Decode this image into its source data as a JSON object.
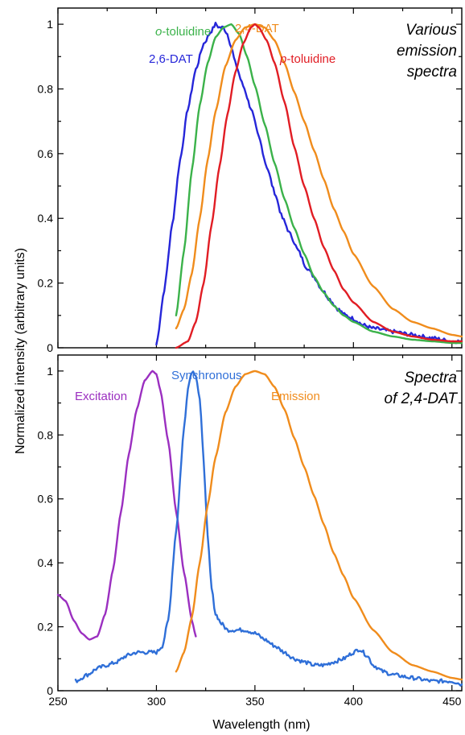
{
  "figure": {
    "ylabel": "Normalized intensity (arbitrary units)",
    "xlabel": "Wavelength (nm)"
  },
  "chart_data": [
    {
      "type": "line",
      "panel_title": [
        "Various",
        "emission",
        "spectra"
      ],
      "xlim": [
        250,
        455
      ],
      "ylim": [
        0,
        1.05
      ],
      "x_ticks": [
        250,
        300,
        350,
        400,
        450
      ],
      "y_ticks": [
        {
          "v": 0,
          "label": "0"
        },
        {
          "v": 0.2,
          "label": "0.2"
        },
        {
          "v": 0.4,
          "label": "0.4"
        },
        {
          "v": 0.6,
          "label": "0.6"
        },
        {
          "v": 0.8,
          "label": "0.8"
        },
        {
          "v": 1,
          "label": "1"
        }
      ],
      "series": [
        {
          "name": "2,6-DAT",
          "color": "#2626d9",
          "noise": 0.006,
          "x": [
            300,
            304,
            308,
            312,
            316,
            320,
            324,
            328,
            330,
            332,
            334,
            336,
            338,
            340,
            344,
            348,
            352,
            356,
            360,
            364,
            368,
            372,
            376,
            380,
            384,
            388,
            392,
            396,
            400,
            405,
            410,
            420,
            430,
            440,
            450,
            455
          ],
          "y": [
            0.01,
            0.18,
            0.38,
            0.58,
            0.74,
            0.86,
            0.94,
            0.98,
            1.0,
            0.99,
            0.99,
            0.97,
            0.93,
            0.88,
            0.81,
            0.74,
            0.65,
            0.56,
            0.48,
            0.4,
            0.35,
            0.3,
            0.25,
            0.22,
            0.18,
            0.15,
            0.12,
            0.1,
            0.09,
            0.07,
            0.06,
            0.05,
            0.04,
            0.03,
            0.02,
            0.02
          ]
        },
        {
          "name": "o-toluidine",
          "italic_prefix": "o",
          "rest": "-toluidine",
          "color": "#3bb24a",
          "noise": 0,
          "x": [
            310,
            314,
            318,
            322,
            326,
            330,
            334,
            338,
            342,
            346,
            350,
            355,
            360,
            365,
            370,
            375,
            380,
            385,
            390,
            395,
            400,
            410,
            420,
            430,
            440,
            450,
            455
          ],
          "y": [
            0.1,
            0.3,
            0.55,
            0.75,
            0.88,
            0.96,
            0.99,
            1.0,
            0.97,
            0.9,
            0.81,
            0.69,
            0.57,
            0.46,
            0.37,
            0.29,
            0.22,
            0.17,
            0.13,
            0.1,
            0.08,
            0.05,
            0.035,
            0.025,
            0.02,
            0.015,
            0.015
          ]
        },
        {
          "name": "2,4-DAT",
          "color": "#f08c1c",
          "noise": 0,
          "x": [
            310,
            314,
            318,
            322,
            326,
            330,
            335,
            340,
            345,
            350,
            355,
            360,
            365,
            370,
            375,
            380,
            385,
            390,
            395,
            400,
            410,
            420,
            430,
            440,
            450,
            455
          ],
          "y": [
            0.06,
            0.12,
            0.23,
            0.4,
            0.58,
            0.73,
            0.87,
            0.95,
            0.99,
            1.0,
            0.99,
            0.95,
            0.88,
            0.79,
            0.7,
            0.61,
            0.52,
            0.43,
            0.36,
            0.29,
            0.19,
            0.12,
            0.08,
            0.06,
            0.04,
            0.035
          ]
        },
        {
          "name": "p-toluidine",
          "italic_prefix": "p",
          "rest": "-toluidine",
          "color": "#e11d24",
          "noise": 0,
          "x": [
            310,
            316,
            320,
            324,
            328,
            332,
            336,
            340,
            344,
            348,
            350,
            352,
            356,
            360,
            365,
            370,
            375,
            380,
            385,
            390,
            395,
            400,
            410,
            420,
            430,
            440,
            450,
            455
          ],
          "y": [
            0.0,
            0.02,
            0.08,
            0.2,
            0.38,
            0.56,
            0.72,
            0.85,
            0.94,
            0.99,
            1.0,
            0.99,
            0.95,
            0.88,
            0.76,
            0.62,
            0.5,
            0.4,
            0.31,
            0.24,
            0.18,
            0.14,
            0.08,
            0.05,
            0.035,
            0.025,
            0.02,
            0.02
          ]
        }
      ]
    },
    {
      "type": "line",
      "panel_title": [
        "Spectra",
        "of 2,4-DAT"
      ],
      "xlim": [
        250,
        455
      ],
      "ylim": [
        0,
        1.05
      ],
      "x_ticks": [
        250,
        300,
        350,
        400,
        450
      ],
      "y_ticks": [
        {
          "v": 0,
          "label": "0"
        },
        {
          "v": 0.2,
          "label": "0.2"
        },
        {
          "v": 0.4,
          "label": "0.4"
        },
        {
          "v": 0.6,
          "label": "0.6"
        },
        {
          "v": 0.8,
          "label": "0.8"
        },
        {
          "v": 1,
          "label": "1"
        }
      ],
      "series": [
        {
          "name": "Excitation",
          "color": "#9b2fc0",
          "noise": 0,
          "x": [
            250,
            254,
            258,
            262,
            266,
            270,
            274,
            278,
            282,
            286,
            290,
            294,
            298,
            300,
            302,
            306,
            310,
            314,
            318,
            320
          ],
          "y": [
            0.3,
            0.28,
            0.22,
            0.18,
            0.16,
            0.17,
            0.24,
            0.38,
            0.56,
            0.74,
            0.88,
            0.97,
            1.0,
            0.99,
            0.94,
            0.78,
            0.56,
            0.37,
            0.22,
            0.17
          ]
        },
        {
          "name": "Synchronous",
          "color": "#2f6fd8",
          "noise": 0.006,
          "x": [
            259,
            265,
            270,
            275,
            280,
            285,
            290,
            295,
            300,
            303,
            306,
            310,
            314,
            316,
            318,
            320,
            322,
            324,
            326,
            328,
            330,
            333,
            336,
            340,
            345,
            350,
            355,
            360,
            365,
            370,
            375,
            380,
            385,
            390,
            395,
            400,
            403,
            407,
            410,
            415,
            420,
            430,
            440,
            450,
            455
          ],
          "y": [
            0.03,
            0.05,
            0.07,
            0.08,
            0.09,
            0.11,
            0.12,
            0.12,
            0.12,
            0.14,
            0.22,
            0.5,
            0.82,
            0.95,
            1.0,
            0.99,
            0.91,
            0.72,
            0.48,
            0.32,
            0.24,
            0.21,
            0.19,
            0.19,
            0.19,
            0.18,
            0.16,
            0.14,
            0.12,
            0.1,
            0.09,
            0.08,
            0.08,
            0.09,
            0.1,
            0.12,
            0.13,
            0.11,
            0.08,
            0.06,
            0.05,
            0.04,
            0.03,
            0.03,
            0.02
          ]
        },
        {
          "name": "Emission",
          "color": "#f08c1c",
          "noise": 0,
          "x": [
            310,
            314,
            318,
            322,
            326,
            330,
            335,
            340,
            345,
            350,
            355,
            360,
            365,
            370,
            375,
            380,
            385,
            390,
            395,
            400,
            410,
            420,
            430,
            440,
            450,
            455
          ],
          "y": [
            0.06,
            0.12,
            0.23,
            0.4,
            0.58,
            0.73,
            0.87,
            0.95,
            0.99,
            1.0,
            0.99,
            0.95,
            0.88,
            0.79,
            0.7,
            0.61,
            0.52,
            0.43,
            0.36,
            0.29,
            0.19,
            0.12,
            0.08,
            0.06,
            0.04,
            0.035
          ]
        }
      ]
    }
  ]
}
